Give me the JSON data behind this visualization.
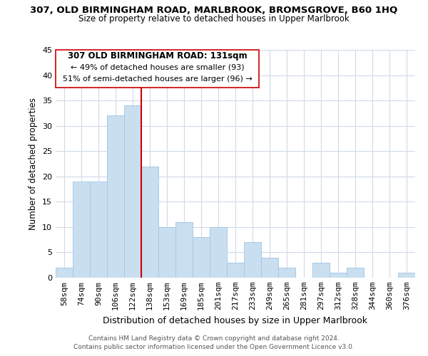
{
  "title": "307, OLD BIRMINGHAM ROAD, MARLBROOK, BROMSGROVE, B60 1HQ",
  "subtitle": "Size of property relative to detached houses in Upper Marlbrook",
  "xlabel": "Distribution of detached houses by size in Upper Marlbrook",
  "ylabel": "Number of detached properties",
  "bar_color": "#c9dff0",
  "bar_edge_color": "#a8c8e8",
  "vline_color": "#cc0000",
  "categories": [
    "58sqm",
    "74sqm",
    "90sqm",
    "106sqm",
    "122sqm",
    "138sqm",
    "153sqm",
    "169sqm",
    "185sqm",
    "201sqm",
    "217sqm",
    "233sqm",
    "249sqm",
    "265sqm",
    "281sqm",
    "297sqm",
    "312sqm",
    "328sqm",
    "344sqm",
    "360sqm",
    "376sqm"
  ],
  "values": [
    2,
    19,
    19,
    32,
    34,
    22,
    10,
    11,
    8,
    10,
    3,
    7,
    4,
    2,
    0,
    3,
    1,
    2,
    0,
    0,
    1
  ],
  "ylim": [
    0,
    45
  ],
  "yticks": [
    0,
    5,
    10,
    15,
    20,
    25,
    30,
    35,
    40,
    45
  ],
  "annotation_title": "307 OLD BIRMINGHAM ROAD: 131sqm",
  "annotation_line1": "← 49% of detached houses are smaller (93)",
  "annotation_line2": "51% of semi-detached houses are larger (96) →",
  "footer_line1": "Contains HM Land Registry data © Crown copyright and database right 2024.",
  "footer_line2": "Contains public sector information licensed under the Open Government Licence v3.0.",
  "background_color": "#ffffff",
  "grid_color": "#d0daea"
}
